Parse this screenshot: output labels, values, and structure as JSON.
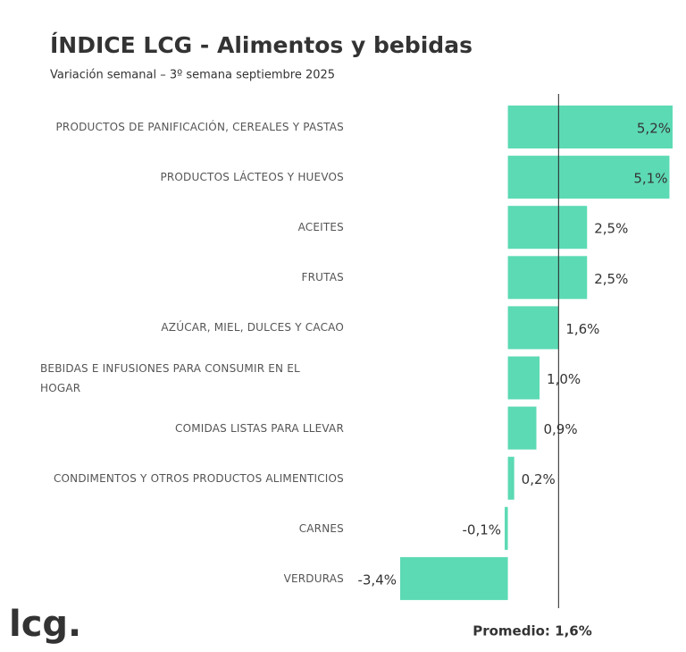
{
  "chart_data": {
    "type": "hbar",
    "title": "ÍNDICE LCG - Alimentos y bebidas",
    "subtitle": "Variación semanal – 3º semana septiembre 2025",
    "categories": [
      "PRODUCTOS DE PANIFICACIÓN, CEREALES Y PASTAS",
      "PRODUCTOS LÁCTEOS Y HUEVOS",
      "ACEITES",
      "FRUTAS",
      "AZÚCAR, MIEL, DULCES Y CACAO",
      "BEBIDAS E INFUSIONES PARA CONSUMIR EN EL HOGAR",
      "COMIDAS LISTAS PARA LLEVAR",
      "CONDIMENTOS Y OTROS PRODUCTOS ALIMENTICIOS",
      "CARNES",
      "VERDURAS"
    ],
    "values": [
      5.2,
      5.1,
      2.5,
      2.5,
      1.6,
      1.0,
      0.9,
      0.2,
      -0.1,
      -3.4
    ],
    "value_labels": [
      "5,2%",
      "5,1%",
      "2,5%",
      "2,5%",
      "1,6%",
      "1,0%",
      "0,9%",
      "0,2%",
      "-0,1%",
      "-3,4%"
    ],
    "color": "#5cdab4",
    "xlim": [
      -3.4,
      5.2
    ],
    "average": {
      "value": 1.6,
      "label": "Promedio: 1,6%"
    },
    "logo": "lcg."
  }
}
